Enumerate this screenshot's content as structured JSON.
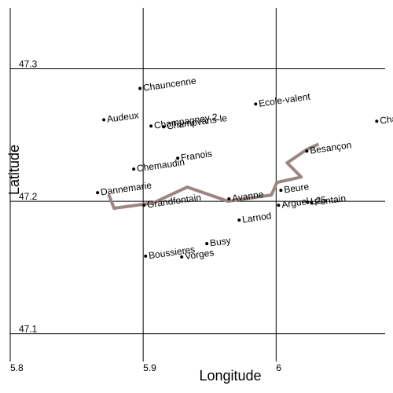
{
  "chart_data": {
    "type": "scatter",
    "xlabel": "Longitude",
    "ylabel": "Latitude",
    "xlim": [
      5.8,
      6.082
    ],
    "ylim": [
      47.079,
      47.346
    ],
    "xticks": [
      5.8,
      5.9,
      6
    ],
    "yticks": [
      47.1,
      47.2,
      47.3
    ],
    "grid": true,
    "point_color": "#000000",
    "labels": [
      "Chauncenne",
      "Audeux",
      "Champagney 2",
      "Champvans-le",
      "Ecole-valent",
      "Cha",
      "Besançon",
      "Chemaudin",
      "Franois",
      "Dannemarie",
      "Grandfontain",
      "Avanne",
      "Beure",
      "Arguel",
      "L25",
      "Fontain",
      "Larnod",
      "Busy",
      "Boussieres",
      "Vorges"
    ],
    "x": [
      5.8976,
      5.8704,
      5.9059,
      5.9154,
      5.9846,
      6.0757,
      6.0231,
      5.8929,
      5.926,
      5.8657,
      5.9006,
      5.9645,
      6.0036,
      6.0018,
      6.0237,
      6.0266,
      5.9722,
      5.9479,
      5.9018,
      5.929
    ],
    "y": [
      47.2852,
      47.2615,
      47.2568,
      47.2562,
      47.2734,
      47.2604,
      47.2379,
      47.2243,
      47.2325,
      47.2065,
      47.197,
      47.2018,
      47.2083,
      47.197,
      47.1994,
      47.1988,
      47.1858,
      47.168,
      47.1586,
      47.158
    ],
    "route": {
      "color": "#9b8585",
      "x": [
        6.032,
        6.0231,
        6.0083,
        6.0189,
        6.0006,
        5.9964,
        5.9639,
        5.9331,
        5.9077,
        5.8781,
        5.874
      ],
      "y": [
        47.2432,
        47.2391,
        47.229,
        47.2183,
        47.2142,
        47.2047,
        47.2,
        47.2107,
        47.1988,
        47.1947,
        47.2053
      ]
    }
  }
}
